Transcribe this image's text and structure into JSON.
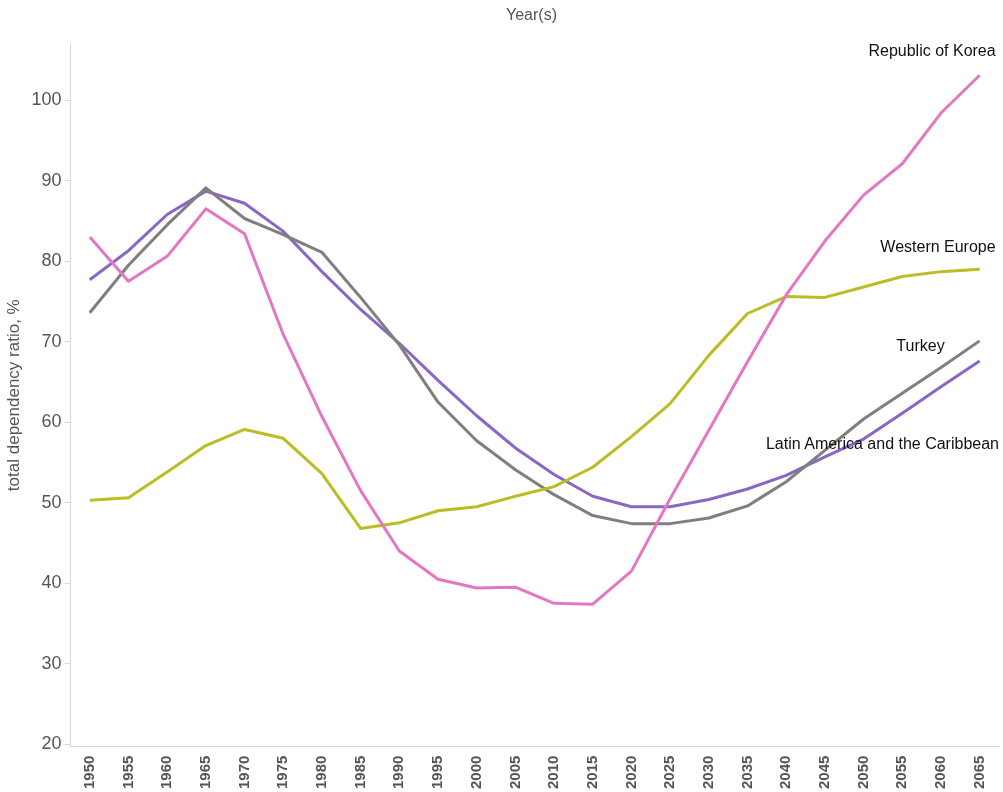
{
  "chart_data": {
    "type": "line",
    "xlabel": "Year(s)",
    "ylabel": "total dependency ratio, %",
    "categories": [
      "1950",
      "1955",
      "1960",
      "1965",
      "1970",
      "1975",
      "1980",
      "1985",
      "1990",
      "1995",
      "2000",
      "2005",
      "2010",
      "2015",
      "2020",
      "2025",
      "2030",
      "2035",
      "2040",
      "2045",
      "2050",
      "2055",
      "2060",
      "2065"
    ],
    "series": [
      {
        "name": "Republic of Korea",
        "color": "#e377c2",
        "values": [
          83.0,
          77.5,
          80.6,
          86.5,
          83.4,
          70.9,
          60.7,
          51.5,
          44.0,
          40.5,
          39.4,
          39.5,
          37.5,
          37.4,
          41.5,
          50.5,
          59.0,
          67.5,
          75.8,
          82.5,
          88.2,
          92.1,
          98.4,
          103.1
        ]
      },
      {
        "name": "Western Europe",
        "color": "#bcbd22",
        "values": [
          50.3,
          50.6,
          53.8,
          57.1,
          59.1,
          58.0,
          53.6,
          46.8,
          47.5,
          49.0,
          49.5,
          50.8,
          52.0,
          54.4,
          58.2,
          62.3,
          68.3,
          73.5,
          75.6,
          75.5,
          76.8,
          78.1,
          78.7,
          79.0
        ]
      },
      {
        "name": "Turkey",
        "color": "#7f7f7f",
        "values": [
          73.6,
          79.5,
          84.5,
          89.1,
          85.3,
          83.3,
          81.1,
          75.5,
          69.6,
          62.5,
          57.7,
          54.1,
          51.0,
          48.4,
          47.4,
          47.4,
          48.1,
          49.6,
          52.6,
          56.5,
          60.4,
          63.6,
          66.8,
          70.1
        ]
      },
      {
        "name": "Latin America and the Caribbean",
        "color": "#8a67c4",
        "values": [
          77.7,
          81.3,
          85.8,
          88.7,
          87.2,
          83.7,
          78.7,
          74.0,
          69.8,
          65.2,
          60.8,
          56.8,
          53.5,
          50.8,
          49.5,
          49.5,
          50.4,
          51.7,
          53.4,
          55.7,
          57.9,
          61.1,
          64.4,
          67.6
        ]
      }
    ],
    "ylim": [
      19.7,
      107
    ],
    "yticks": [
      20,
      30,
      40,
      50,
      60,
      70,
      80,
      90,
      100
    ],
    "grid": false,
    "legend": false,
    "marker": "none",
    "line_style": "solid"
  }
}
